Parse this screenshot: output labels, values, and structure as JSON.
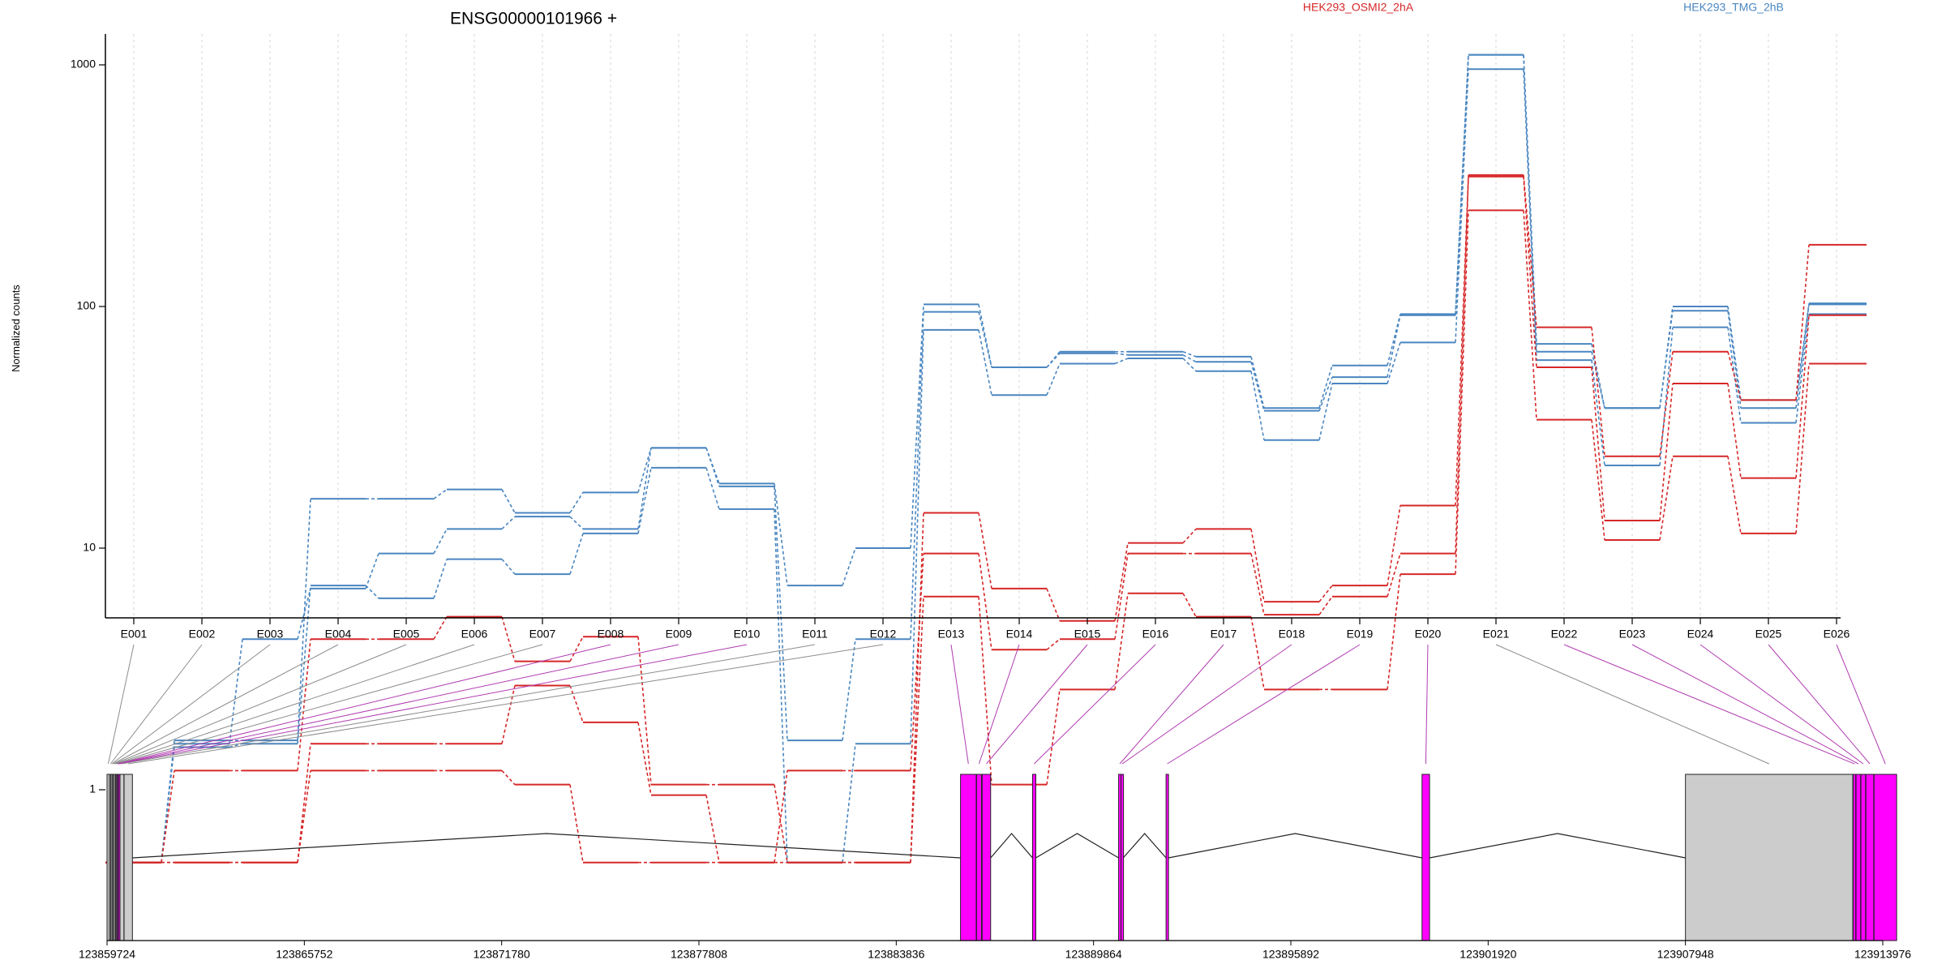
{
  "chart_data": {
    "type": "line",
    "title": "ENSG00000101966 +",
    "ylabel": "Normalized counts",
    "xlabel": "",
    "yscale": "log",
    "ylim": [
      0.42,
      1500
    ],
    "yticks": [
      "1",
      "10",
      "100",
      "1000"
    ],
    "ytick_values": [
      1,
      10,
      100,
      1000
    ],
    "categories": [
      "E001",
      "E002",
      "E003",
      "E004",
      "E005",
      "E006",
      "E007",
      "E008",
      "E009",
      "E010",
      "E011",
      "E012",
      "E013",
      "E014",
      "E015",
      "E016",
      "E017",
      "E018",
      "E019",
      "E020",
      "E021",
      "E022",
      "E023",
      "E024",
      "E025",
      "E026"
    ],
    "legend": [
      "HEK293_OSMI2_2hA",
      "HEK293_TMG_2hB"
    ],
    "legend_placement": "top-right",
    "grid": "vertical dashed at exons",
    "series": [
      {
        "name": "HEK293_TMG_2hB",
        "color": "#4a86c0",
        "values": [
          0.5,
          1.6,
          1.6,
          16,
          16,
          17.5,
          14,
          17,
          26,
          18.5,
          7,
          10,
          102,
          56,
          65,
          65,
          62,
          38,
          57,
          93,
          1100,
          70,
          38,
          100,
          41,
          103
        ]
      },
      {
        "name": "HEK293_TMG_2hB",
        "color": "#4a86c0",
        "values": [
          0.5,
          1.55,
          4.2,
          6.8,
          9.5,
          12,
          13.5,
          12,
          26,
          18,
          1.6,
          4.2,
          95,
          56,
          64,
          63,
          59,
          37,
          51,
          92,
          1100,
          65,
          38,
          96,
          38,
          102
        ]
      },
      {
        "name": "HEK293_TMG_2hB",
        "color": "#4a86c0",
        "values": [
          0.5,
          1.5,
          1.55,
          7,
          6.2,
          9,
          7.8,
          11.5,
          21.5,
          14.5,
          0.5,
          1.55,
          80,
          43,
          58,
          61,
          54,
          28,
          48,
          71,
          960,
          60,
          22,
          82,
          33,
          93
        ]
      },
      {
        "name": "HEK293_OSMI2_2hA",
        "color": "#d62728",
        "values": [
          0.5,
          1.2,
          1.2,
          4.2,
          4.2,
          5.2,
          3.4,
          4.3,
          1.05,
          1.05,
          0.5,
          0.5,
          14,
          6.8,
          5,
          10.5,
          12,
          6,
          7,
          15,
          350,
          82,
          24,
          65,
          41,
          180
        ]
      },
      {
        "name": "HEK293_OSMI2_2hA",
        "color": "#d62728",
        "values": [
          0.5,
          0.5,
          0.5,
          1.55,
          1.55,
          1.55,
          2.7,
          1.9,
          0.95,
          0.5,
          1.2,
          1.2,
          9.5,
          3.8,
          4.2,
          9.5,
          9.5,
          5.3,
          6.3,
          9.5,
          345,
          56,
          13,
          48,
          19.5,
          92
        ]
      },
      {
        "name": "HEK293_OSMI2_2hA",
        "color": "#d62728",
        "values": [
          0.5,
          0.5,
          0.5,
          1.2,
          1.2,
          1.2,
          1.05,
          0.5,
          0.5,
          0.5,
          0.5,
          0.5,
          6.3,
          1.05,
          2.6,
          6.5,
          5.2,
          2.6,
          2.6,
          7.8,
          250,
          34,
          10.8,
          24,
          11.5,
          58
        ]
      }
    ],
    "gene_model": {
      "coordinate_ticks": [
        "123859724",
        "123865752",
        "123871780",
        "123877808",
        "123883836",
        "123889864",
        "123895892",
        "123901920",
        "123907948",
        "123913976"
      ],
      "xlim": [
        123859724,
        123913976
      ],
      "exon_colors": {
        "significant": "#ff00ff",
        "normal": "#cccccc"
      },
      "exons": [
        {
          "id": "E001",
          "start": 123859724,
          "end": 123859790,
          "color": "#cccccc"
        },
        {
          "id": "E002",
          "start": 123859795,
          "end": 123859830,
          "color": "#cccccc"
        },
        {
          "id": "E003",
          "start": 123859835,
          "end": 123859870,
          "color": "#cccccc"
        },
        {
          "id": "E004",
          "start": 123859875,
          "end": 123859900,
          "color": "#cccccc"
        },
        {
          "id": "E005",
          "start": 123859905,
          "end": 123859940,
          "color": "#cccccc"
        },
        {
          "id": "E006",
          "start": 123859945,
          "end": 123859980,
          "color": "#cccccc"
        },
        {
          "id": "E007",
          "start": 123859985,
          "end": 123860010,
          "color": "#cccccc"
        },
        {
          "id": "E008",
          "start": 123860015,
          "end": 123860040,
          "color": "#ff00ff"
        },
        {
          "id": "E009",
          "start": 123860045,
          "end": 123860070,
          "color": "#ff00ff"
        },
        {
          "id": "E010",
          "start": 123860075,
          "end": 123860115,
          "color": "#ff00ff"
        },
        {
          "id": "E011",
          "start": 123860120,
          "end": 123860240,
          "color": "#cccccc"
        },
        {
          "id": "E012",
          "start": 123860245,
          "end": 123860500,
          "color": "#cccccc"
        },
        {
          "id": "E013",
          "start": 123885800,
          "end": 123886280,
          "color": "#ff00ff"
        },
        {
          "id": "E014",
          "start": 123886290,
          "end": 123886440,
          "color": "#ff00ff"
        },
        {
          "id": "E015",
          "start": 123886460,
          "end": 123886720,
          "color": "#ff00ff"
        },
        {
          "id": "E016",
          "start": 123888000,
          "end": 123888100,
          "color": "#ff00ff"
        },
        {
          "id": "E017",
          "start": 123890630,
          "end": 123890700,
          "color": "#ff00ff"
        },
        {
          "id": "E018",
          "start": 123890705,
          "end": 123890770,
          "color": "#ff00ff"
        },
        {
          "id": "E019",
          "start": 123892080,
          "end": 123892150,
          "color": "#ff00ff"
        },
        {
          "id": "E020",
          "start": 123899900,
          "end": 123900130,
          "color": "#ff00ff"
        },
        {
          "id": "E021",
          "start": 123907948,
          "end": 123913060,
          "color": "#cccccc"
        },
        {
          "id": "E022",
          "start": 123913070,
          "end": 123913150,
          "color": "#ff00ff"
        },
        {
          "id": "E023",
          "start": 123913160,
          "end": 123913300,
          "color": "#ff00ff"
        },
        {
          "id": "E024",
          "start": 123913310,
          "end": 123913450,
          "color": "#ff00ff"
        },
        {
          "id": "E025",
          "start": 123913460,
          "end": 123913700,
          "color": "#ff00ff"
        },
        {
          "id": "E026",
          "start": 123913710,
          "end": 123914400,
          "color": "#ff00ff"
        }
      ]
    }
  }
}
